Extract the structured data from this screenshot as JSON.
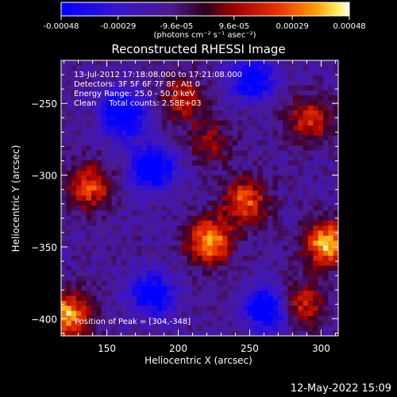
{
  "chart_data": {
    "type": "heatmap",
    "title": "Reconstructed RHESSI Image",
    "xlabel": "Heliocentric X (arcsec)",
    "ylabel": "Heliocentric Y (arcsec)",
    "xlim": [
      118,
      312
    ],
    "ylim": [
      -412,
      -220
    ],
    "x_ticks": [
      150,
      200,
      250,
      300
    ],
    "y_ticks": [
      -250,
      -300,
      -350,
      -400
    ],
    "colorbar": {
      "label": "(photons cm⁻² s⁻¹ asec⁻²)",
      "ticks": [
        "-0.00048",
        "-0.00029",
        "-9.6e-05",
        "9.6e-05",
        "0.00029",
        "0.00048"
      ],
      "range": [
        -0.00048,
        0.00048
      ],
      "colormap": "blue-purple-red-orange-yellow-white"
    },
    "annotations": [
      "13-Jul-2012 17:18:08.000 to 17:21:08.000",
      "Detectors: 3F 5F 6F 7F 8F, Att 0",
      "Energy Range: 25.0 - 50.0 keV",
      "Clean     Total counts: 2.58E+03",
      "Position of Peak = [304,-348]"
    ],
    "peak_position": [
      304,
      -348
    ],
    "bright_regions": [
      {
        "x": 222,
        "y": -346,
        "value": 0.00045
      },
      {
        "x": 247,
        "y": -318,
        "value": 0.00036
      },
      {
        "x": 122,
        "y": -398,
        "value": 0.00046
      },
      {
        "x": 304,
        "y": -348,
        "value": 0.00048
      },
      {
        "x": 138,
        "y": -308,
        "value": 0.00034
      },
      {
        "x": 292,
        "y": -262,
        "value": 0.0003
      },
      {
        "x": 203,
        "y": -247,
        "value": 0.00026
      },
      {
        "x": 287,
        "y": -390,
        "value": 0.00028
      },
      {
        "x": 222,
        "y": -277,
        "value": 0.0002
      }
    ],
    "dim_regions": [
      {
        "x": 162,
        "y": -257,
        "value": -0.0004
      },
      {
        "x": 182,
        "y": -295,
        "value": -0.00042
      },
      {
        "x": 262,
        "y": -393,
        "value": -0.00038
      },
      {
        "x": 252,
        "y": -232,
        "value": -0.00035
      },
      {
        "x": 182,
        "y": -383,
        "value": -0.00034
      }
    ]
  },
  "timestamp": "12-May-2022 15:09"
}
